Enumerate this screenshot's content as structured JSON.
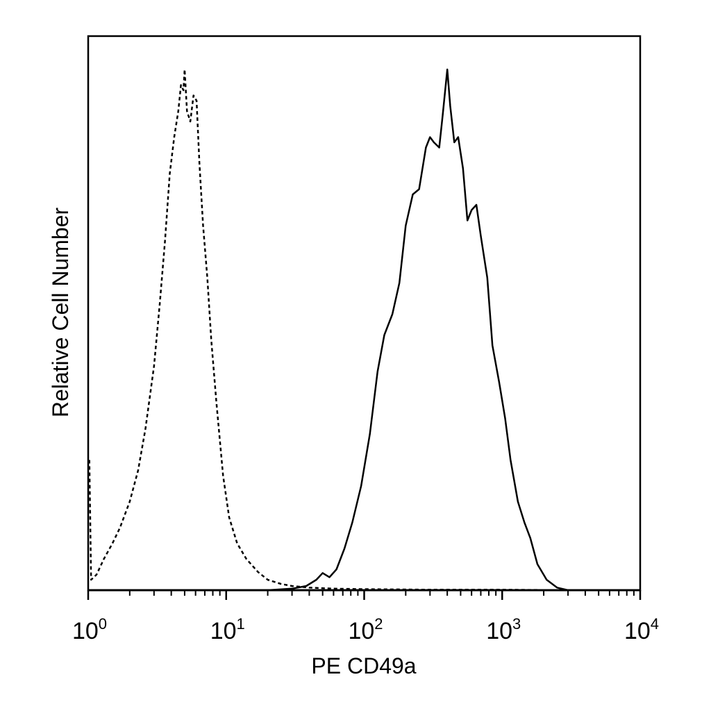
{
  "chart_data": {
    "type": "line",
    "xlabel": "PE CD49a",
    "ylabel": "Relative Cell Number",
    "x_scale": "log",
    "xlim": [
      1,
      10000
    ],
    "ylim": [
      0,
      1
    ],
    "x_tick_labels": [
      {
        "base": "10",
        "exp": "0",
        "value": 1
      },
      {
        "base": "10",
        "exp": "1",
        "value": 10
      },
      {
        "base": "10",
        "exp": "2",
        "value": 100
      },
      {
        "base": "10",
        "exp": "3",
        "value": 1000
      },
      {
        "base": "10",
        "exp": "4",
        "value": 10000
      }
    ],
    "grid": false,
    "legend": "none",
    "series": [
      {
        "style": "dashed",
        "color": "#000000",
        "points": [
          [
            1.02,
            0.25
          ],
          [
            1.05,
            0.02
          ],
          [
            1.15,
            0.03
          ],
          [
            1.3,
            0.06
          ],
          [
            1.5,
            0.09
          ],
          [
            1.7,
            0.12
          ],
          [
            2.0,
            0.17
          ],
          [
            2.3,
            0.23
          ],
          [
            2.6,
            0.31
          ],
          [
            3.0,
            0.43
          ],
          [
            3.3,
            0.55
          ],
          [
            3.6,
            0.67
          ],
          [
            3.9,
            0.8
          ],
          [
            4.2,
            0.87
          ],
          [
            4.5,
            0.92
          ],
          [
            4.7,
            0.97
          ],
          [
            4.9,
            0.96
          ],
          [
            5.0,
            1.0
          ],
          [
            5.2,
            0.92
          ],
          [
            5.5,
            0.9
          ],
          [
            5.8,
            0.95
          ],
          [
            6.1,
            0.94
          ],
          [
            6.4,
            0.82
          ],
          [
            6.8,
            0.7
          ],
          [
            7.3,
            0.6
          ],
          [
            7.8,
            0.48
          ],
          [
            8.5,
            0.36
          ],
          [
            9.5,
            0.22
          ],
          [
            10.5,
            0.14
          ],
          [
            12,
            0.09
          ],
          [
            14,
            0.06
          ],
          [
            17,
            0.035
          ],
          [
            20,
            0.02
          ],
          [
            25,
            0.012
          ],
          [
            30,
            0.008
          ],
          [
            40,
            0.005
          ],
          [
            60,
            0.003
          ],
          [
            100,
            0.002
          ],
          [
            300,
            0.001
          ],
          [
            1000,
            0.001
          ],
          [
            3000,
            0.0
          ]
        ]
      },
      {
        "style": "solid",
        "color": "#000000",
        "points": [
          [
            1,
            0.0
          ],
          [
            20,
            0.0
          ],
          [
            30,
            0.003
          ],
          [
            38,
            0.008
          ],
          [
            45,
            0.02
          ],
          [
            50,
            0.033
          ],
          [
            56,
            0.025
          ],
          [
            63,
            0.04
          ],
          [
            72,
            0.08
          ],
          [
            82,
            0.13
          ],
          [
            95,
            0.2
          ],
          [
            110,
            0.3
          ],
          [
            125,
            0.42
          ],
          [
            140,
            0.49
          ],
          [
            160,
            0.53
          ],
          [
            180,
            0.59
          ],
          [
            200,
            0.7
          ],
          [
            225,
            0.76
          ],
          [
            250,
            0.77
          ],
          [
            280,
            0.85
          ],
          [
            300,
            0.87
          ],
          [
            320,
            0.86
          ],
          [
            350,
            0.85
          ],
          [
            370,
            0.91
          ],
          [
            400,
            1.0
          ],
          [
            420,
            0.93
          ],
          [
            450,
            0.86
          ],
          [
            480,
            0.87
          ],
          [
            520,
            0.81
          ],
          [
            560,
            0.71
          ],
          [
            600,
            0.73
          ],
          [
            650,
            0.74
          ],
          [
            700,
            0.68
          ],
          [
            780,
            0.6
          ],
          [
            850,
            0.47
          ],
          [
            950,
            0.4
          ],
          [
            1050,
            0.33
          ],
          [
            1150,
            0.25
          ],
          [
            1300,
            0.17
          ],
          [
            1450,
            0.13
          ],
          [
            1600,
            0.1
          ],
          [
            1800,
            0.05
          ],
          [
            2100,
            0.02
          ],
          [
            2500,
            0.005
          ],
          [
            3000,
            0.0
          ],
          [
            10000,
            0.0
          ]
        ]
      }
    ]
  }
}
